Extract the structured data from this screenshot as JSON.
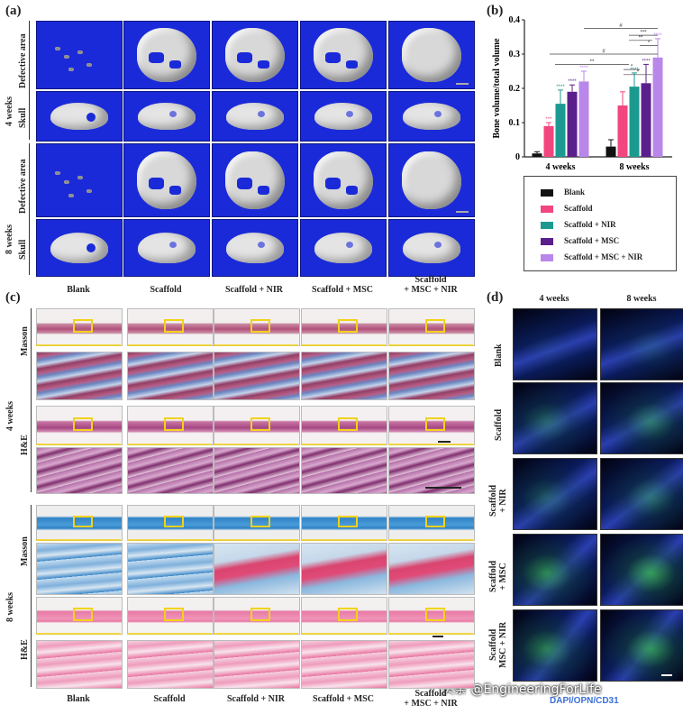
{
  "panel_a": {
    "label": "(a)",
    "row_labels": [
      {
        "outer": "4 weeks",
        "inner": "Defective area"
      },
      {
        "outer": "4 weeks",
        "inner": "Skull"
      },
      {
        "outer": "8 weeks",
        "inner": "Defective area"
      },
      {
        "outer": "8 weeks",
        "inner": "Skull"
      }
    ],
    "group_labels": [
      "4 weeks",
      "8 weeks"
    ],
    "inner_labels": [
      "Defective area",
      "Skull",
      "Defective area",
      "Skull"
    ],
    "columns": [
      "Blank",
      "Scaffold",
      "Scaffold + NIR",
      "Scaffold + MSC",
      "Scaffold\n+ MSC + NIR"
    ],
    "col_line1": [
      "Blank",
      "Scaffold",
      "Scaffold + NIR",
      "Scaffold + MSC",
      "Scaffold"
    ],
    "col_line2": [
      "",
      "",
      "",
      "",
      "+ MSC + NIR"
    ]
  },
  "panel_b": {
    "label": "(b)",
    "legend": [
      "Blank",
      "Scaffold",
      "Scaffold + NIR",
      "Scaffold + MSC",
      "Scaffold + MSC + NIR"
    ],
    "colors": [
      "#111111",
      "#f2467f",
      "#1c9a92",
      "#5b1f8c",
      "#b987ea"
    ]
  },
  "chart_data": {
    "type": "bar",
    "categories": [
      "4 weeks",
      "8 weeks"
    ],
    "series": [
      {
        "name": "Blank",
        "values": [
          0.01,
          0.03
        ],
        "errors": [
          0.005,
          0.02
        ]
      },
      {
        "name": "Scaffold",
        "values": [
          0.09,
          0.15
        ],
        "errors": [
          0.01,
          0.04
        ]
      },
      {
        "name": "Scaffold + NIR",
        "values": [
          0.155,
          0.205
        ],
        "errors": [
          0.04,
          0.04
        ]
      },
      {
        "name": "Scaffold + MSC",
        "values": [
          0.19,
          0.215
        ],
        "errors": [
          0.02,
          0.055
        ]
      },
      {
        "name": "Scaffold + MSC + NIR",
        "values": [
          0.22,
          0.29
        ],
        "errors": [
          0.03,
          0.055
        ]
      }
    ],
    "ylabel": "Bone volume/total volume",
    "ylim": [
      0,
      0.4
    ],
    "yticks": [
      "0",
      "0.1",
      "0.2",
      "0.3",
      "0.4"
    ],
    "bar_stars": [
      [
        "",
        "***",
        "****",
        "****",
        "****"
      ],
      [
        "",
        "",
        "****",
        "****",
        "****"
      ]
    ],
    "brackets": [
      "#",
      "***",
      "**",
      "*",
      "**",
      "#",
      "*",
      "*"
    ]
  },
  "panel_c": {
    "label": "(c)",
    "group_labels": [
      "4 weeks",
      "8 weeks"
    ],
    "stain_labels": [
      "Masson",
      "H&E",
      "Masson",
      "H&E"
    ],
    "columns": [
      "Blank",
      "Scaffold",
      "Scaffold + NIR",
      "Scaffold + MSC",
      "Scaffold"
    ],
    "col_line2": [
      "",
      "",
      "",
      "",
      "+ MSC + NIR"
    ]
  },
  "panel_d": {
    "label": "(d)",
    "columns": [
      "4 weeks",
      "8 weeks"
    ],
    "rows": [
      "Blank",
      "Scaffold",
      "Scaffold\n+ NIR",
      "Scaffold\n+ MSC",
      "Scaffold\nMSC + NIR"
    ],
    "row_line1": [
      "Blank",
      "Scaffold",
      "Scaffold",
      "Scaffold",
      "Scaffold"
    ],
    "row_line2": [
      "",
      "",
      "+ NIR",
      "+ MSC",
      "MSC + NIR"
    ],
    "footer_partial": "DAPI/OPN/CD31"
  },
  "watermark": "头条 @EngineeringForLife"
}
